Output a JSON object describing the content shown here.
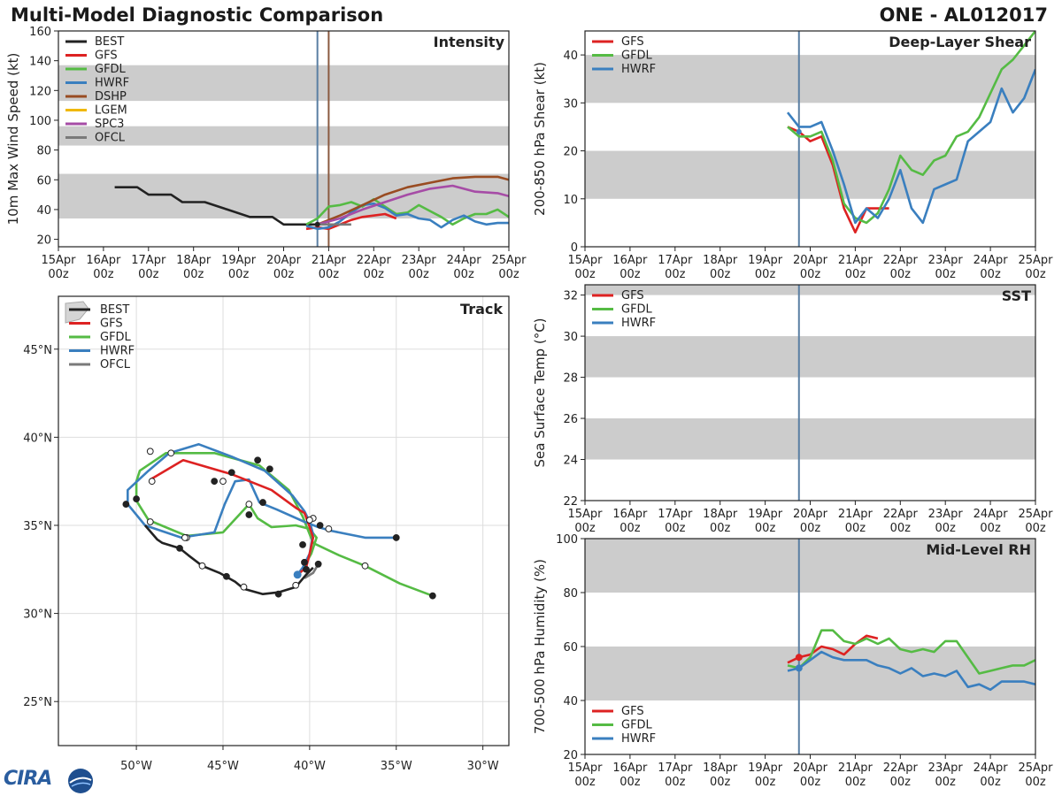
{
  "header": {
    "title": "Multi-Model Diagnostic Comparison",
    "storm": "ONE - AL012017"
  },
  "logo_text": "CIRA",
  "colors": {
    "BEST": "#222222",
    "GFS": "#dd2222",
    "GFDL": "#55bb44",
    "HWRF": "#3a7fbf",
    "DSHP": "#994c22",
    "LGEM": "#f0b800",
    "SPC3": "#a64ca6",
    "OFCL": "#7a7a7a",
    "band": "#cccccc",
    "vline": "#5a7fa3",
    "vline2": "#8a5a40"
  },
  "time_ticks": [
    {
      "t": 0,
      "d": "15Apr",
      "h": "00z"
    },
    {
      "t": 1,
      "d": "16Apr",
      "h": "00z"
    },
    {
      "t": 2,
      "d": "17Apr",
      "h": "00z"
    },
    {
      "t": 3,
      "d": "18Apr",
      "h": "00z"
    },
    {
      "t": 4,
      "d": "19Apr",
      "h": "00z"
    },
    {
      "t": 5,
      "d": "20Apr",
      "h": "00z"
    },
    {
      "t": 6,
      "d": "21Apr",
      "h": "00z"
    },
    {
      "t": 7,
      "d": "22Apr",
      "h": "00z"
    },
    {
      "t": 8,
      "d": "23Apr",
      "h": "00z"
    },
    {
      "t": 9,
      "d": "24Apr",
      "h": "00z"
    },
    {
      "t": 10,
      "d": "25Apr",
      "h": "00z"
    }
  ],
  "chart_data": [
    {
      "id": "intensity",
      "type": "line",
      "title": "Intensity",
      "ylabel": "10m Max Wind Speed (kt)",
      "xlim": [
        0,
        10
      ],
      "ylim": [
        15,
        160
      ],
      "yticks": [
        20,
        40,
        60,
        80,
        100,
        120,
        140,
        160
      ],
      "bands": [
        [
          34,
          64
        ],
        [
          83,
          96
        ],
        [
          113,
          137
        ]
      ],
      "vlines": [
        {
          "t": 5.75,
          "c": "vline"
        },
        {
          "t": 6.0,
          "c": "vline2"
        }
      ],
      "legend": [
        "BEST",
        "GFS",
        "GFDL",
        "HWRF",
        "DSHP",
        "LGEM",
        "SPC3",
        "OFCL"
      ],
      "series": [
        {
          "name": "BEST",
          "x": [
            1.25,
            1.75,
            2.0,
            2.5,
            2.75,
            3.25,
            3.75,
            4.25,
            4.75,
            5.0,
            5.25,
            5.5,
            5.75
          ],
          "y": [
            55,
            55,
            50,
            50,
            45,
            45,
            40,
            35,
            35,
            30,
            30,
            30,
            30
          ]
        },
        {
          "name": "GFS",
          "x": [
            5.5,
            5.75,
            6.0,
            6.25,
            6.5,
            6.75,
            7.0,
            7.25,
            7.5
          ],
          "y": [
            27,
            28,
            27,
            30,
            33,
            35,
            36,
            37,
            34
          ]
        },
        {
          "name": "GFDL",
          "x": [
            5.5,
            5.75,
            6.0,
            6.25,
            6.5,
            6.75,
            7.0,
            7.25,
            7.5,
            7.75,
            8.0,
            8.25,
            8.5,
            8.75,
            9.0,
            9.25,
            9.5,
            9.75,
            10.0
          ],
          "y": [
            30,
            34,
            42,
            43,
            45,
            42,
            47,
            42,
            37,
            38,
            43,
            39,
            35,
            30,
            34,
            37,
            37,
            40,
            35
          ]
        },
        {
          "name": "HWRF",
          "x": [
            5.5,
            5.75,
            6.0,
            6.25,
            6.5,
            6.75,
            7.0,
            7.25,
            7.5,
            7.75,
            8.0,
            8.25,
            8.5,
            8.75,
            9.0,
            9.25,
            9.5,
            9.75,
            10.0
          ],
          "y": [
            29,
            27,
            28,
            32,
            38,
            43,
            44,
            41,
            36,
            37,
            34,
            33,
            28,
            33,
            36,
            32,
            30,
            31,
            31
          ]
        },
        {
          "name": "DSHP",
          "x": [
            5.75,
            6.25,
            6.75,
            7.25,
            7.75,
            8.25,
            8.75,
            9.25,
            9.75,
            10.0
          ],
          "y": [
            30,
            36,
            43,
            50,
            55,
            58,
            61,
            62,
            62,
            60
          ]
        },
        {
          "name": "SPC3",
          "x": [
            5.75,
            6.25,
            6.75,
            7.25,
            7.75,
            8.25,
            8.75,
            9.25,
            9.75,
            10.0
          ],
          "y": [
            30,
            34,
            40,
            45,
            50,
            54,
            56,
            52,
            51,
            49
          ]
        },
        {
          "name": "OFCL",
          "x": [
            5.75,
            6.0,
            6.25,
            6.5
          ],
          "y": [
            30,
            30,
            30,
            30
          ]
        }
      ]
    },
    {
      "id": "shear",
      "type": "line",
      "title": "Deep-Layer Shear",
      "ylabel": "200-850 hPa Shear (kt)",
      "xlim": [
        0,
        10
      ],
      "ylim": [
        0,
        45
      ],
      "yticks": [
        0,
        10,
        20,
        30,
        40
      ],
      "bands": [
        [
          10,
          20
        ],
        [
          30,
          40
        ]
      ],
      "vlines": [
        {
          "t": 4.75,
          "c": "vline"
        }
      ],
      "legend": [
        "GFS",
        "GFDL",
        "HWRF"
      ],
      "series": [
        {
          "name": "GFS",
          "x": [
            4.5,
            4.75,
            5.0,
            5.25,
            5.5,
            5.75,
            6.0,
            6.25,
            6.5,
            6.75
          ],
          "y": [
            25,
            24,
            22,
            23,
            17,
            8,
            3,
            8,
            8,
            8
          ]
        },
        {
          "name": "GFDL",
          "x": [
            4.5,
            4.75,
            5.0,
            5.25,
            5.5,
            5.75,
            6.0,
            6.25,
            6.5,
            6.75,
            7.0,
            7.25,
            7.5,
            7.75,
            8.0,
            8.25,
            8.5,
            8.75,
            9.0,
            9.25,
            9.5,
            9.75,
            10.0
          ],
          "y": [
            25,
            23,
            23,
            24,
            18,
            9,
            6,
            5,
            7,
            12,
            19,
            16,
            15,
            18,
            19,
            23,
            24,
            27,
            32,
            37,
            39,
            42,
            45
          ]
        },
        {
          "name": "HWRF",
          "x": [
            4.5,
            4.75,
            5.0,
            5.25,
            5.5,
            5.75,
            6.0,
            6.25,
            6.5,
            6.75,
            7.0,
            7.25,
            7.5,
            7.75,
            8.0,
            8.25,
            8.5,
            8.75,
            9.0,
            9.25,
            9.5,
            9.75,
            10.0
          ],
          "y": [
            28,
            25,
            25,
            26,
            20,
            13,
            5,
            8,
            6,
            10,
            16,
            8,
            5,
            12,
            13,
            14,
            22,
            24,
            26,
            33,
            28,
            31,
            37
          ]
        }
      ]
    },
    {
      "id": "sst",
      "type": "line",
      "title": "SST",
      "ylabel": "Sea Surface Temp (°C)",
      "xlim": [
        0,
        10
      ],
      "ylim": [
        22,
        32.5
      ],
      "yticks": [
        22,
        24,
        26,
        28,
        30,
        32
      ],
      "bands": [
        [
          24,
          26
        ],
        [
          28,
          30
        ],
        [
          32,
          32.5
        ]
      ],
      "vlines": [
        {
          "t": 4.75,
          "c": "vline"
        }
      ],
      "legend": [
        "GFS",
        "GFDL",
        "HWRF"
      ],
      "series": []
    },
    {
      "id": "rh",
      "type": "line",
      "title": "Mid-Level RH",
      "ylabel": "700-500 hPa Humidity (%)",
      "xlim": [
        0,
        10
      ],
      "ylim": [
        20,
        100
      ],
      "yticks": [
        20,
        40,
        60,
        80,
        100
      ],
      "bands": [
        [
          40,
          60
        ],
        [
          80,
          100
        ]
      ],
      "vlines": [
        {
          "t": 4.75,
          "c": "vline"
        }
      ],
      "legend": [
        "GFS",
        "GFDL",
        "HWRF"
      ],
      "legend_pos": "bottom-left",
      "series": [
        {
          "name": "GFS",
          "x": [
            4.5,
            4.75,
            5.0,
            5.25,
            5.5,
            5.75,
            6.0,
            6.25,
            6.5
          ],
          "y": [
            54,
            56,
            57,
            60,
            59,
            57,
            61,
            64,
            63
          ]
        },
        {
          "name": "GFDL",
          "x": [
            4.5,
            4.75,
            5.0,
            5.25,
            5.5,
            5.75,
            6.0,
            6.25,
            6.5,
            6.75,
            7.0,
            7.25,
            7.5,
            7.75,
            8.0,
            8.25,
            8.5,
            8.75,
            9.0,
            9.25,
            9.5,
            9.75,
            10.0
          ],
          "y": [
            53,
            52,
            56,
            66,
            66,
            62,
            61,
            63,
            61,
            63,
            59,
            58,
            59,
            58,
            62,
            62,
            56,
            50,
            51,
            52,
            53,
            53,
            55
          ]
        },
        {
          "name": "HWRF",
          "x": [
            4.5,
            4.75,
            5.0,
            5.25,
            5.5,
            5.75,
            6.0,
            6.25,
            6.5,
            6.75,
            7.0,
            7.25,
            7.5,
            7.75,
            8.0,
            8.25,
            8.5,
            8.75,
            9.0,
            9.25,
            9.5,
            9.75,
            10.0
          ],
          "y": [
            51,
            52,
            55,
            58,
            56,
            55,
            55,
            55,
            53,
            52,
            50,
            52,
            49,
            50,
            49,
            51,
            45,
            46,
            44,
            47,
            47,
            47,
            46
          ]
        }
      ]
    },
    {
      "id": "track",
      "type": "line",
      "title": "Track",
      "xlim": [
        -54.5,
        -28.5
      ],
      "ylim": [
        22.5,
        48
      ],
      "xticks": [
        {
          "v": -50,
          "l": "50°W"
        },
        {
          "v": -45,
          "l": "45°W"
        },
        {
          "v": -40,
          "l": "40°W"
        },
        {
          "v": -35,
          "l": "35°W"
        },
        {
          "v": -30,
          "l": "30°W"
        }
      ],
      "yticks": [
        {
          "v": 25,
          "l": "25°N"
        },
        {
          "v": 30,
          "l": "30°N"
        },
        {
          "v": 35,
          "l": "35°N"
        },
        {
          "v": 40,
          "l": "40°N"
        },
        {
          "v": 45,
          "l": "45°N"
        }
      ],
      "legend": [
        "BEST",
        "GFS",
        "GFDL",
        "HWRF",
        "OFCL"
      ],
      "series": [
        {
          "name": "BEST",
          "lon": [
            -49.5,
            -48.8,
            -48.5,
            -47.5,
            -47,
            -46.2,
            -45.2,
            -44.3,
            -43.8,
            -42.7,
            -41.8,
            -40.8,
            -40.2,
            -39.8
          ],
          "lat": [
            35.0,
            34.2,
            34.0,
            33.7,
            33.3,
            32.7,
            32.3,
            31.8,
            31.4,
            31.1,
            31.2,
            31.5,
            32.2,
            32.6
          ],
          "filled": [
            false,
            false,
            false,
            true,
            false,
            false,
            true,
            false,
            false,
            true,
            false,
            true,
            false,
            false
          ],
          "markers": [
            3,
            5,
            6,
            8,
            10,
            11
          ]
        },
        {
          "name": "GFS",
          "lon": [
            -40.7,
            -40.2,
            -40.0,
            -39.8,
            -40.1,
            -40.3,
            -40.8,
            -42.2,
            -44.5,
            -47.3,
            -49.2
          ],
          "lat": [
            32.2,
            32.6,
            33.4,
            34.3,
            35.2,
            35.7,
            36.0,
            37.0,
            37.9,
            38.7,
            37.6
          ],
          "markers": []
        },
        {
          "name": "GFDL",
          "lon": [
            -40.7,
            -40.3,
            -39.9,
            -39.6,
            -40.0,
            -40.8,
            -42.2,
            -43.0,
            -43.5,
            -45.0,
            -47.1,
            -49.3,
            -50.0,
            -50.0,
            -49.8,
            -48.3,
            -45.5,
            -42.9,
            -41.2,
            -40.4,
            -39.8,
            -38.3,
            -36.8,
            -34.8,
            -32.9
          ],
          "lat": [
            32.2,
            32.7,
            33.4,
            34.3,
            34.8,
            35.0,
            34.9,
            35.4,
            36.2,
            34.6,
            34.4,
            35.3,
            36.4,
            37.5,
            38.1,
            39.1,
            39.1,
            38.4,
            37.0,
            35.5,
            34.0,
            33.3,
            32.7,
            31.7,
            31.0
          ],
          "markers": []
        },
        {
          "name": "HWRF",
          "lon": [
            -40.7,
            -40.4,
            -40.0,
            -39.8,
            -40.0,
            -40.3,
            -41.0,
            -42.6,
            -44.5,
            -46.4,
            -48.1,
            -49.3,
            -50.5,
            -50.5,
            -49.5,
            -47.4,
            -45.5,
            -44.9,
            -44.3,
            -43.5,
            -42.9,
            -41.9,
            -40.3,
            -39.5,
            -38.8,
            -36.8,
            -35.0
          ],
          "lat": [
            32.2,
            32.6,
            33.4,
            34.5,
            35.2,
            35.8,
            36.7,
            38.1,
            38.9,
            39.6,
            39.1,
            38.1,
            37.0,
            36.2,
            35.0,
            34.3,
            34.6,
            36.2,
            37.5,
            37.6,
            36.3,
            35.9,
            35.2,
            34.9,
            34.7,
            34.3,
            34.3
          ],
          "markers": []
        },
        {
          "name": "OFCL",
          "lon": [
            -40.3,
            -39.8,
            -39.5
          ],
          "lat": [
            32.0,
            32.3,
            32.8
          ],
          "markers": []
        }
      ],
      "best_label_pts": [
        [
          -50.6,
          36.3
        ],
        [
          -49.9,
          36.4
        ],
        [
          -49.9,
          36.6
        ]
      ]
    }
  ],
  "intensity_legend_labels": [
    "BEST",
    "GFS",
    "GFDL",
    "HWRF",
    "DSHP",
    "LGEM",
    "SPC3",
    "OFCL"
  ],
  "panel_legend_labels": [
    "GFS",
    "GFDL",
    "HWRF"
  ],
  "track_legend_labels": [
    "BEST",
    "GFS",
    "GFDL",
    "HWRF",
    "OFCL"
  ]
}
